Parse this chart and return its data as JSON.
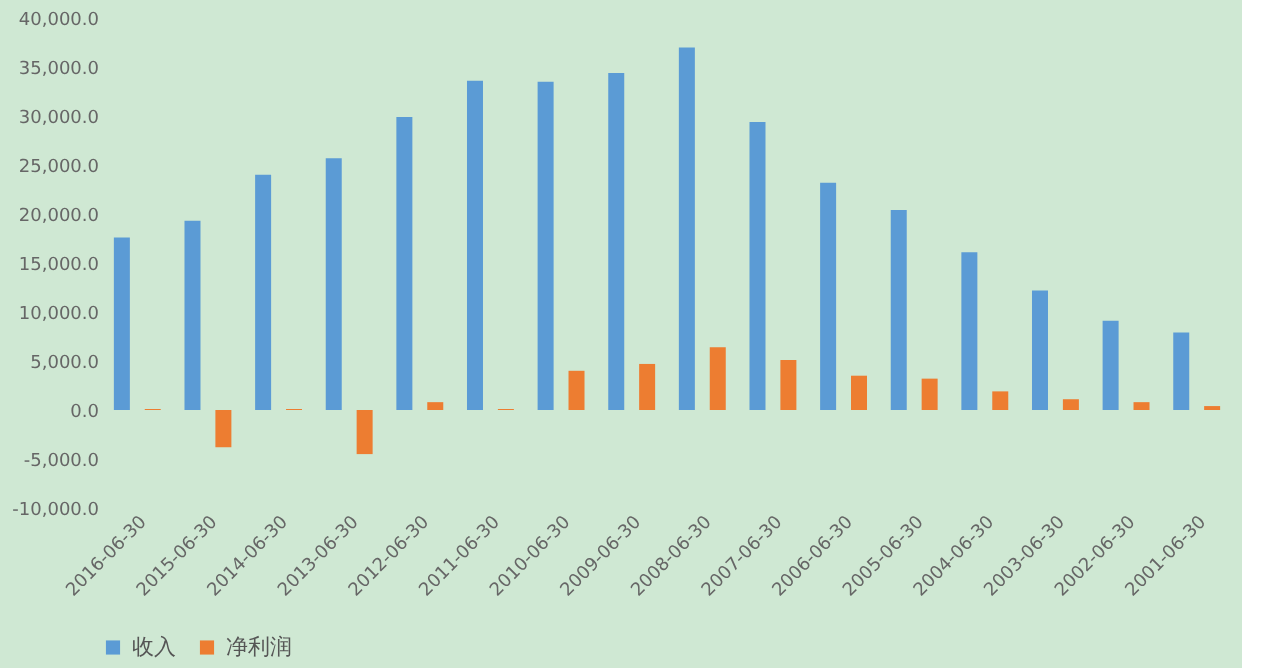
{
  "chart_data": {
    "type": "bar",
    "categories": [
      "2016-06-30",
      "2015-06-30",
      "2014-06-30",
      "2013-06-30",
      "2012-06-30",
      "2011-06-30",
      "2010-06-30",
      "2009-06-30",
      "2008-06-30",
      "2007-06-30",
      "2006-06-30",
      "2005-06-30",
      "2004-06-30",
      "2003-06-30",
      "2002-06-30",
      "2001-06-30"
    ],
    "series": [
      {
        "name": "收入",
        "color": "#5b9bd5",
        "values": [
          17600,
          19300,
          24000,
          25700,
          29900,
          33600,
          33500,
          34400,
          37000,
          29400,
          23200,
          20400,
          16100,
          12200,
          9100,
          7900
        ]
      },
      {
        "name": "净利润",
        "color": "#ed7d31",
        "values": [
          100,
          -3800,
          100,
          -4500,
          800,
          100,
          4000,
          4700,
          6400,
          5100,
          3500,
          3200,
          1900,
          1100,
          800,
          400
        ]
      }
    ],
    "ylim": [
      -10000,
      40000
    ],
    "yticks": [
      {
        "value": -10000,
        "label": "-10,000.0"
      },
      {
        "value": -5000,
        "label": "-5,000.0"
      },
      {
        "value": 0,
        "label": "0.0"
      },
      {
        "value": 5000,
        "label": "5,000.0"
      },
      {
        "value": 10000,
        "label": "10,000.0"
      },
      {
        "value": 15000,
        "label": "15,000.0"
      },
      {
        "value": 20000,
        "label": "20,000.0"
      },
      {
        "value": 25000,
        "label": "25,000.0"
      },
      {
        "value": 30000,
        "label": "30,000.0"
      },
      {
        "value": 35000,
        "label": "35,000.0"
      },
      {
        "value": 40000,
        "label": "40,000.0"
      }
    ],
    "grid": false,
    "legend": "bottom"
  }
}
